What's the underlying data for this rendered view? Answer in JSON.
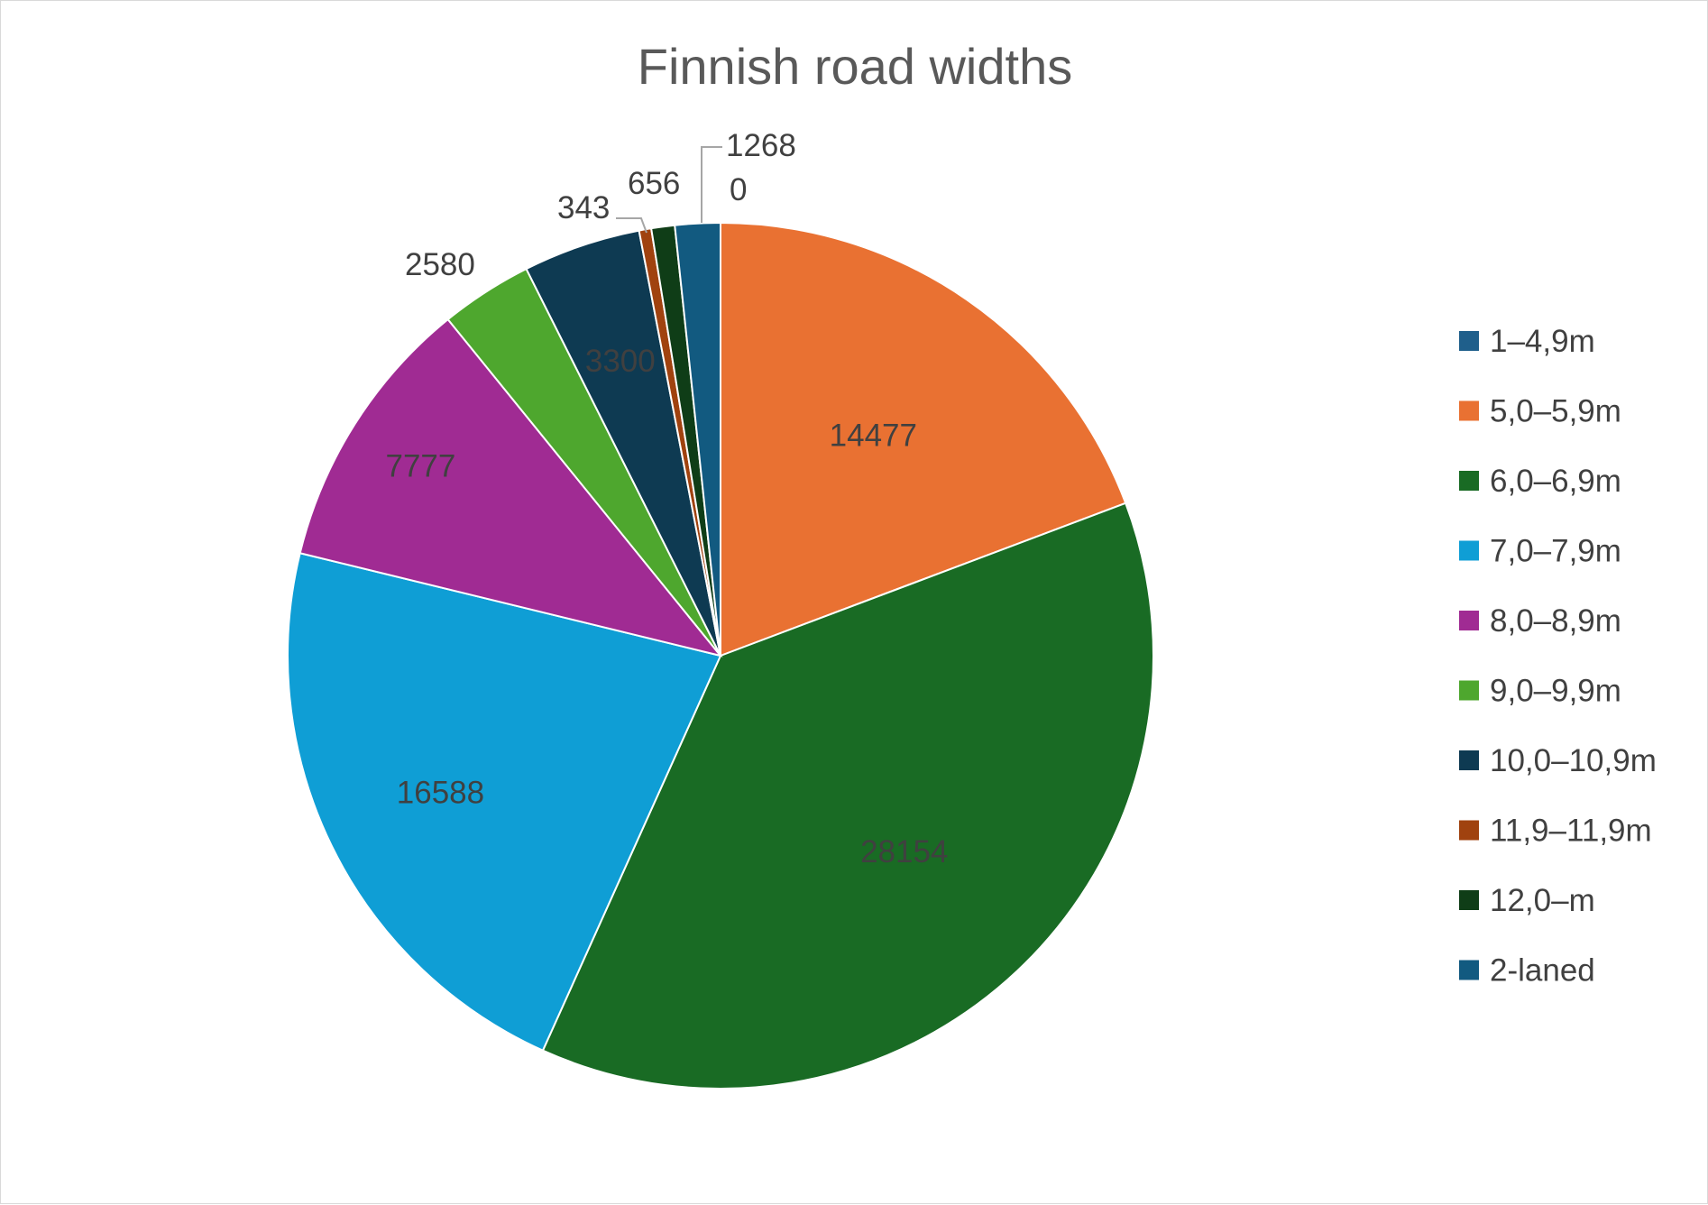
{
  "chart_data": {
    "type": "pie",
    "title": "Finnish road widths",
    "legend_position": "right",
    "categories": [
      "1–4,9m",
      "5,0–5,9m",
      "6,0–6,9m",
      "7,0–7,9m",
      "8,0–8,9m",
      "9,0–9,9m",
      "10,0–10,9m",
      "11,9–11,9m",
      "12,0–m",
      "2-laned"
    ],
    "values": [
      0,
      14477,
      28154,
      16588,
      7777,
      2580,
      3300,
      343,
      656,
      1268
    ],
    "labels": [
      "0",
      "14477",
      "28154",
      "16588",
      "7777",
      "2580",
      "3300",
      "343",
      "656",
      "1268"
    ],
    "colors": [
      "#1f5f8b",
      "#e97132",
      "#196b24",
      "#0f9ed5",
      "#a02b93",
      "#4ea72e",
      "#0e3a52",
      "#a0420f",
      "#0f3d17",
      "#125a80"
    ]
  }
}
